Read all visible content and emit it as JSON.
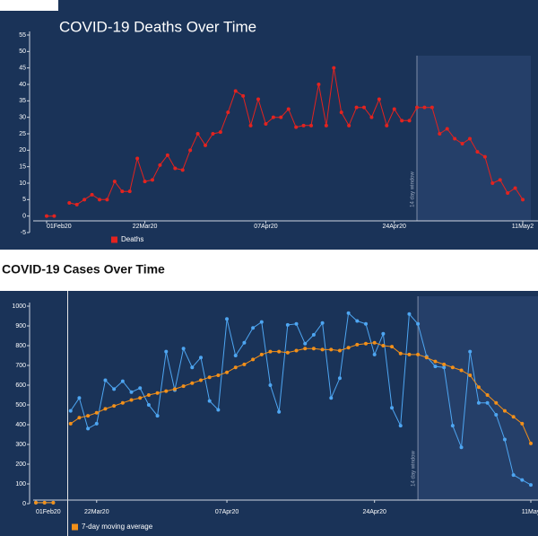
{
  "chart_data": [
    {
      "type": "line",
      "title": "COVID-19 Deaths Over Time",
      "categories": [
        "01Feb20",
        null,
        null,
        null,
        null,
        null,
        null,
        null,
        null,
        null,
        null,
        null,
        null,
        "22Mar20",
        null,
        null,
        null,
        null,
        null,
        null,
        null,
        null,
        null,
        null,
        null,
        null,
        null,
        null,
        null,
        "07Apr20",
        null,
        null,
        null,
        null,
        null,
        null,
        null,
        null,
        null,
        null,
        null,
        null,
        null,
        null,
        null,
        null,
        "24Apr20",
        null,
        null,
        null,
        null,
        null,
        null,
        null,
        null,
        null,
        null,
        null,
        null,
        null,
        null,
        null,
        null,
        "11May2"
      ],
      "series": [
        {
          "name": "Deaths",
          "color": "#e3231f",
          "values": [
            0,
            0,
            null,
            4,
            3.5,
            5,
            6.5,
            5,
            5,
            10.5,
            7.5,
            7.5,
            17.5,
            10.5,
            11,
            15.5,
            18.5,
            14.5,
            14,
            20,
            25,
            21.5,
            25,
            25.5,
            31.5,
            38,
            36.5,
            27.5,
            35.5,
            28,
            30,
            30,
            32.5,
            27,
            27.5,
            27.5,
            40,
            27.5,
            45,
            31.5,
            27.5,
            33,
            33,
            30,
            35.5,
            27.5,
            32.5,
            29,
            29,
            33,
            33,
            33,
            25,
            26.5,
            23.5,
            22,
            23.5,
            19.5,
            18,
            10,
            11,
            7,
            8.5,
            5
          ]
        }
      ],
      "ylim": [
        -5,
        55
      ],
      "yticks": [
        -5,
        0,
        5,
        10,
        15,
        20,
        25,
        30,
        35,
        40,
        45,
        50,
        55
      ],
      "annotation": {
        "text": "14 day window",
        "from_category": 49
      },
      "legend": "bottom-left"
    },
    {
      "type": "line",
      "title": "COVID-19 Cases Over Time",
      "categories": [
        "01Feb20",
        null,
        null,
        null,
        null,
        null,
        null,
        "22Mar20",
        null,
        null,
        null,
        null,
        null,
        null,
        null,
        null,
        null,
        null,
        null,
        null,
        null,
        null,
        "07Apr20",
        null,
        null,
        null,
        null,
        null,
        null,
        null,
        null,
        null,
        null,
        null,
        null,
        null,
        null,
        null,
        null,
        "24Apr20",
        null,
        null,
        null,
        null,
        null,
        null,
        null,
        null,
        null,
        null,
        null,
        null,
        null,
        null,
        null,
        null,
        null,
        "11May"
      ],
      "series": [
        {
          "color": "#4ea6f2",
          "values": [
            5,
            5,
            5,
            null,
            470,
            535,
            380,
            405,
            625,
            580,
            620,
            565,
            585,
            500,
            445,
            770,
            575,
            785,
            690,
            740,
            520,
            475,
            935,
            750,
            815,
            890,
            920,
            600,
            465,
            905,
            910,
            810,
            855,
            915,
            535,
            635,
            965,
            925,
            910,
            755,
            860,
            485,
            395,
            960,
            910,
            745,
            695,
            690,
            395,
            285,
            770,
            510,
            510,
            450,
            325,
            145,
            120,
            95
          ]
        },
        {
          "name": "7-day moving average",
          "color": "#f39019",
          "values": [
            5,
            5,
            5,
            null,
            405,
            435,
            445,
            460,
            480,
            495,
            510,
            525,
            535,
            550,
            560,
            570,
            580,
            595,
            610,
            625,
            640,
            650,
            665,
            690,
            705,
            730,
            755,
            770,
            770,
            765,
            775,
            785,
            785,
            780,
            780,
            775,
            790,
            805,
            810,
            815,
            800,
            795,
            760,
            755,
            755,
            740,
            720,
            705,
            690,
            675,
            650,
            590,
            550,
            510,
            470,
            440,
            405,
            305
          ]
        }
      ],
      "ylim": [
        0,
        1000
      ],
      "yticks": [
        0,
        100,
        200,
        300,
        400,
        500,
        600,
        700,
        800,
        900,
        1000
      ],
      "annotation": {
        "text": "14 day window",
        "from_category": 44
      },
      "legend": "bottom-left"
    }
  ]
}
